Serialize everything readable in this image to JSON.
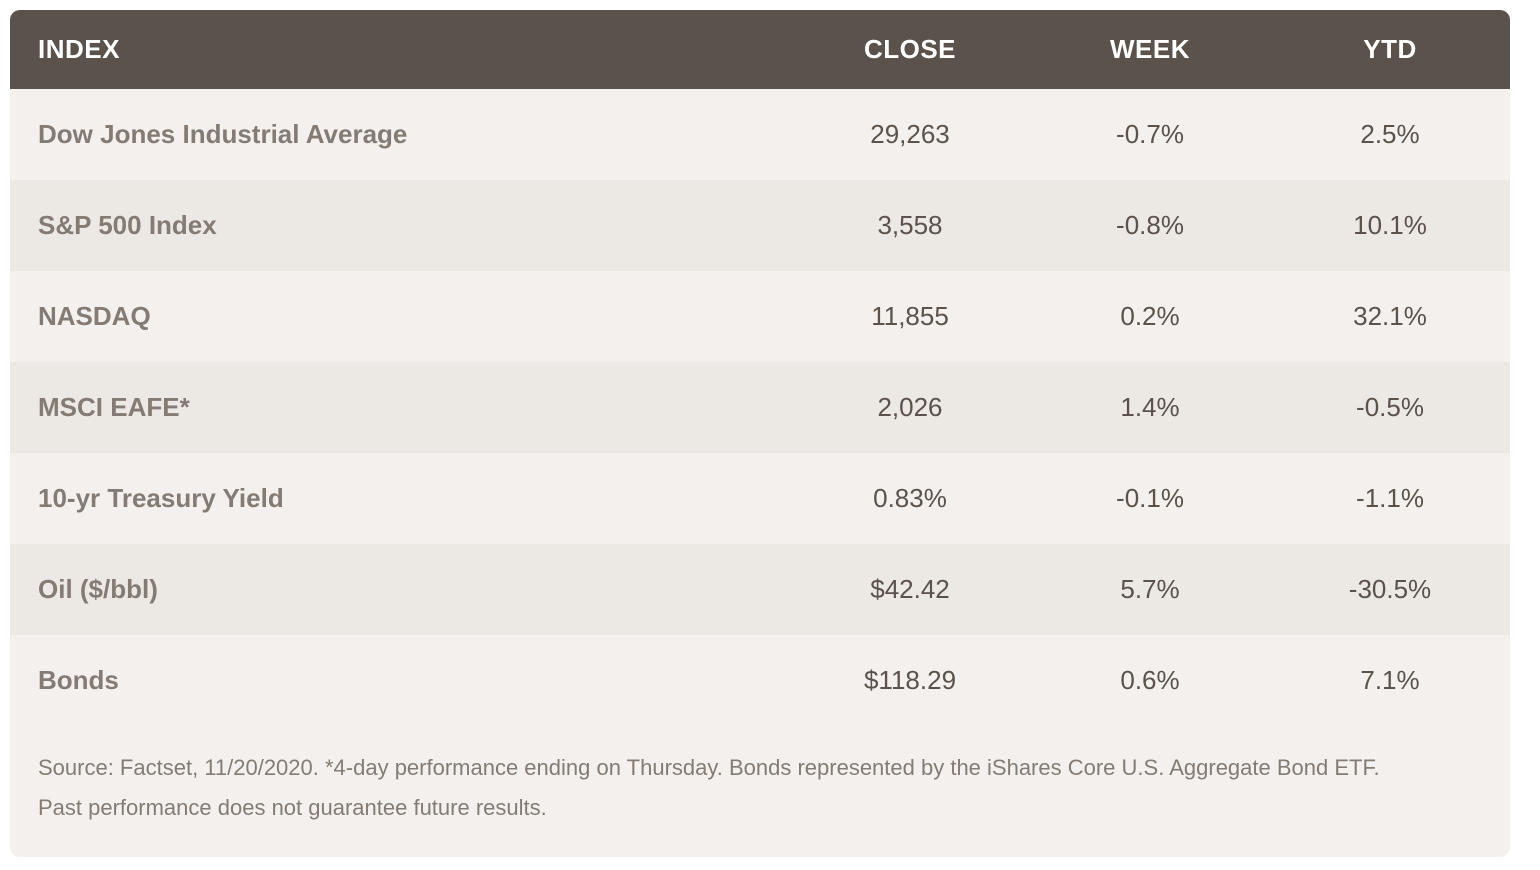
{
  "table": {
    "type": "table",
    "columns": [
      {
        "label": "INDEX",
        "width_pct": 52,
        "align": "left"
      },
      {
        "label": "CLOSE",
        "width_pct": 16,
        "align": "center"
      },
      {
        "label": "WEEK",
        "width_pct": 16,
        "align": "center"
      },
      {
        "label": "YTD",
        "width_pct": 16,
        "align": "center"
      }
    ],
    "rows": [
      {
        "name": "Dow Jones Industrial Average",
        "close": "29,263",
        "week": "-0.7%",
        "ytd": "2.5%"
      },
      {
        "name": "S&P 500 Index",
        "close": "3,558",
        "week": "-0.8%",
        "ytd": "10.1%"
      },
      {
        "name": "NASDAQ",
        "close": "11,855",
        "week": "0.2%",
        "ytd": "32.1%"
      },
      {
        "name": "MSCI EAFE*",
        "close": "2,026",
        "week": "1.4%",
        "ytd": "-0.5%"
      },
      {
        "name": "10-yr Treasury Yield",
        "close": "0.83%",
        "week": "-0.1%",
        "ytd": "-1.1%"
      },
      {
        "name": "Oil ($/bbl)",
        "close": "$42.42",
        "week": "5.7%",
        "ytd": "-30.5%"
      },
      {
        "name": "Bonds",
        "close": "$118.29",
        "week": "0.6%",
        "ytd": "7.1%"
      }
    ],
    "header_bg": "#5a524b",
    "header_text_color": "#ffffff",
    "row_bg_odd": "#f3f0ed",
    "row_bg_even": "#ece8e3",
    "name_color": "#847c74",
    "value_color": "#5a524b",
    "header_fontsize": 26,
    "cell_fontsize": 26,
    "footnote_fontsize": 22,
    "border_radius": 10
  },
  "footnote": {
    "line1": "Source: Factset, 11/20/2020. *4-day performance ending on Thursday. Bonds represented by the iShares Core U.S. Aggregate Bond ETF.",
    "line2": "Past performance does not guarantee future results."
  }
}
